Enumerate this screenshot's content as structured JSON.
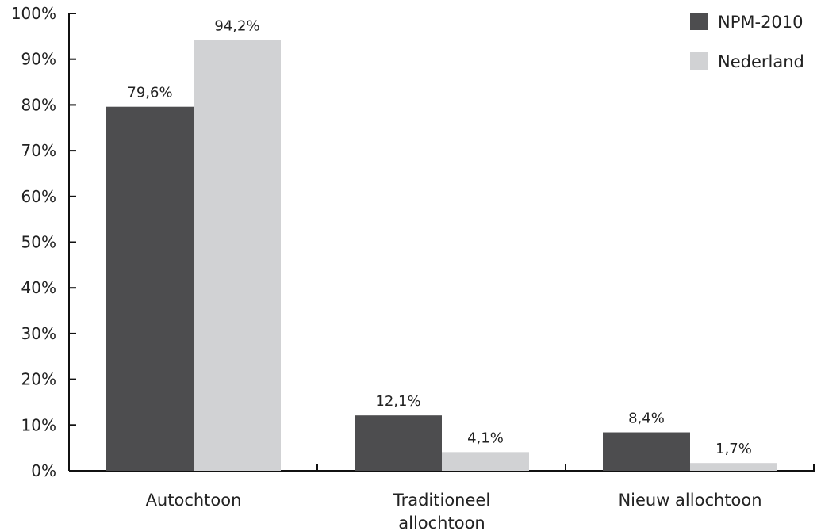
{
  "chart_data": {
    "type": "bar",
    "categories": [
      "Autochtoon",
      "Traditioneel allochtoon",
      "Nieuw allochtoon"
    ],
    "category_lines": [
      [
        "Autochtoon"
      ],
      [
        "Traditioneel",
        "allochtoon"
      ],
      [
        "Nieuw allochtoon"
      ]
    ],
    "series": [
      {
        "name": "NPM-2010",
        "values": [
          79.6,
          12.1,
          8.4
        ],
        "labels": [
          "79,6%",
          "12,1%",
          "8,4%"
        ],
        "color": "#4d4d4f"
      },
      {
        "name": "Nederland",
        "values": [
          94.2,
          4.1,
          1.7
        ],
        "labels": [
          "94,2%",
          "4,1%",
          "1,7%"
        ],
        "color": "#d1d2d4"
      }
    ],
    "ylim": [
      0,
      100
    ],
    "yticks": [
      "0%",
      "10%",
      "20%",
      "30%",
      "40%",
      "50%",
      "60%",
      "70%",
      "80%",
      "90%",
      "100%"
    ],
    "grid": false,
    "legend_position": "top-right",
    "title": "",
    "xlabel": "",
    "ylabel": ""
  }
}
